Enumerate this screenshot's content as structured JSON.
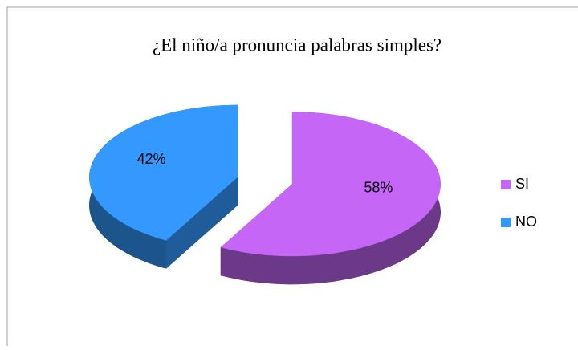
{
  "chart_data": {
    "type": "pie",
    "title": "¿El niño/a pronuncia palabras simples?",
    "categories": [
      "SI",
      "NO"
    ],
    "values": [
      58,
      42
    ],
    "value_labels": [
      "58%",
      "42%"
    ],
    "colors": [
      "#c566f7",
      "#3399ff"
    ],
    "legend": "right"
  }
}
